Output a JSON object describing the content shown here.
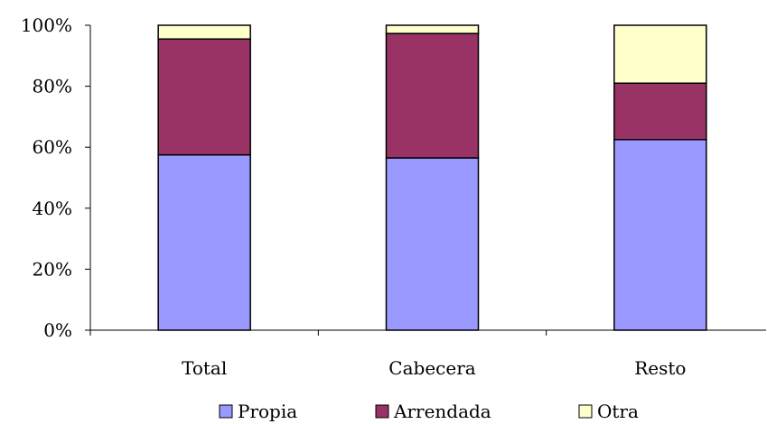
{
  "chart_data": {
    "type": "bar",
    "stacked": true,
    "normalized": true,
    "categories": [
      "Total",
      "Cabecera",
      "Resto"
    ],
    "series": [
      {
        "name": "Propia",
        "values": [
          57.5,
          56.5,
          62.5
        ],
        "color": "#9999ff"
      },
      {
        "name": "Arrendada",
        "values": [
          38.0,
          40.8,
          18.5
        ],
        "color": "#993366"
      },
      {
        "name": "Otra",
        "values": [
          4.5,
          2.7,
          19.0
        ],
        "color": "#ffffcc"
      }
    ],
    "yticks": [
      "0%",
      "20%",
      "40%",
      "60%",
      "80%",
      "100%"
    ],
    "ylim": [
      0,
      100
    ],
    "grid": false,
    "legend_position": "bottom"
  }
}
